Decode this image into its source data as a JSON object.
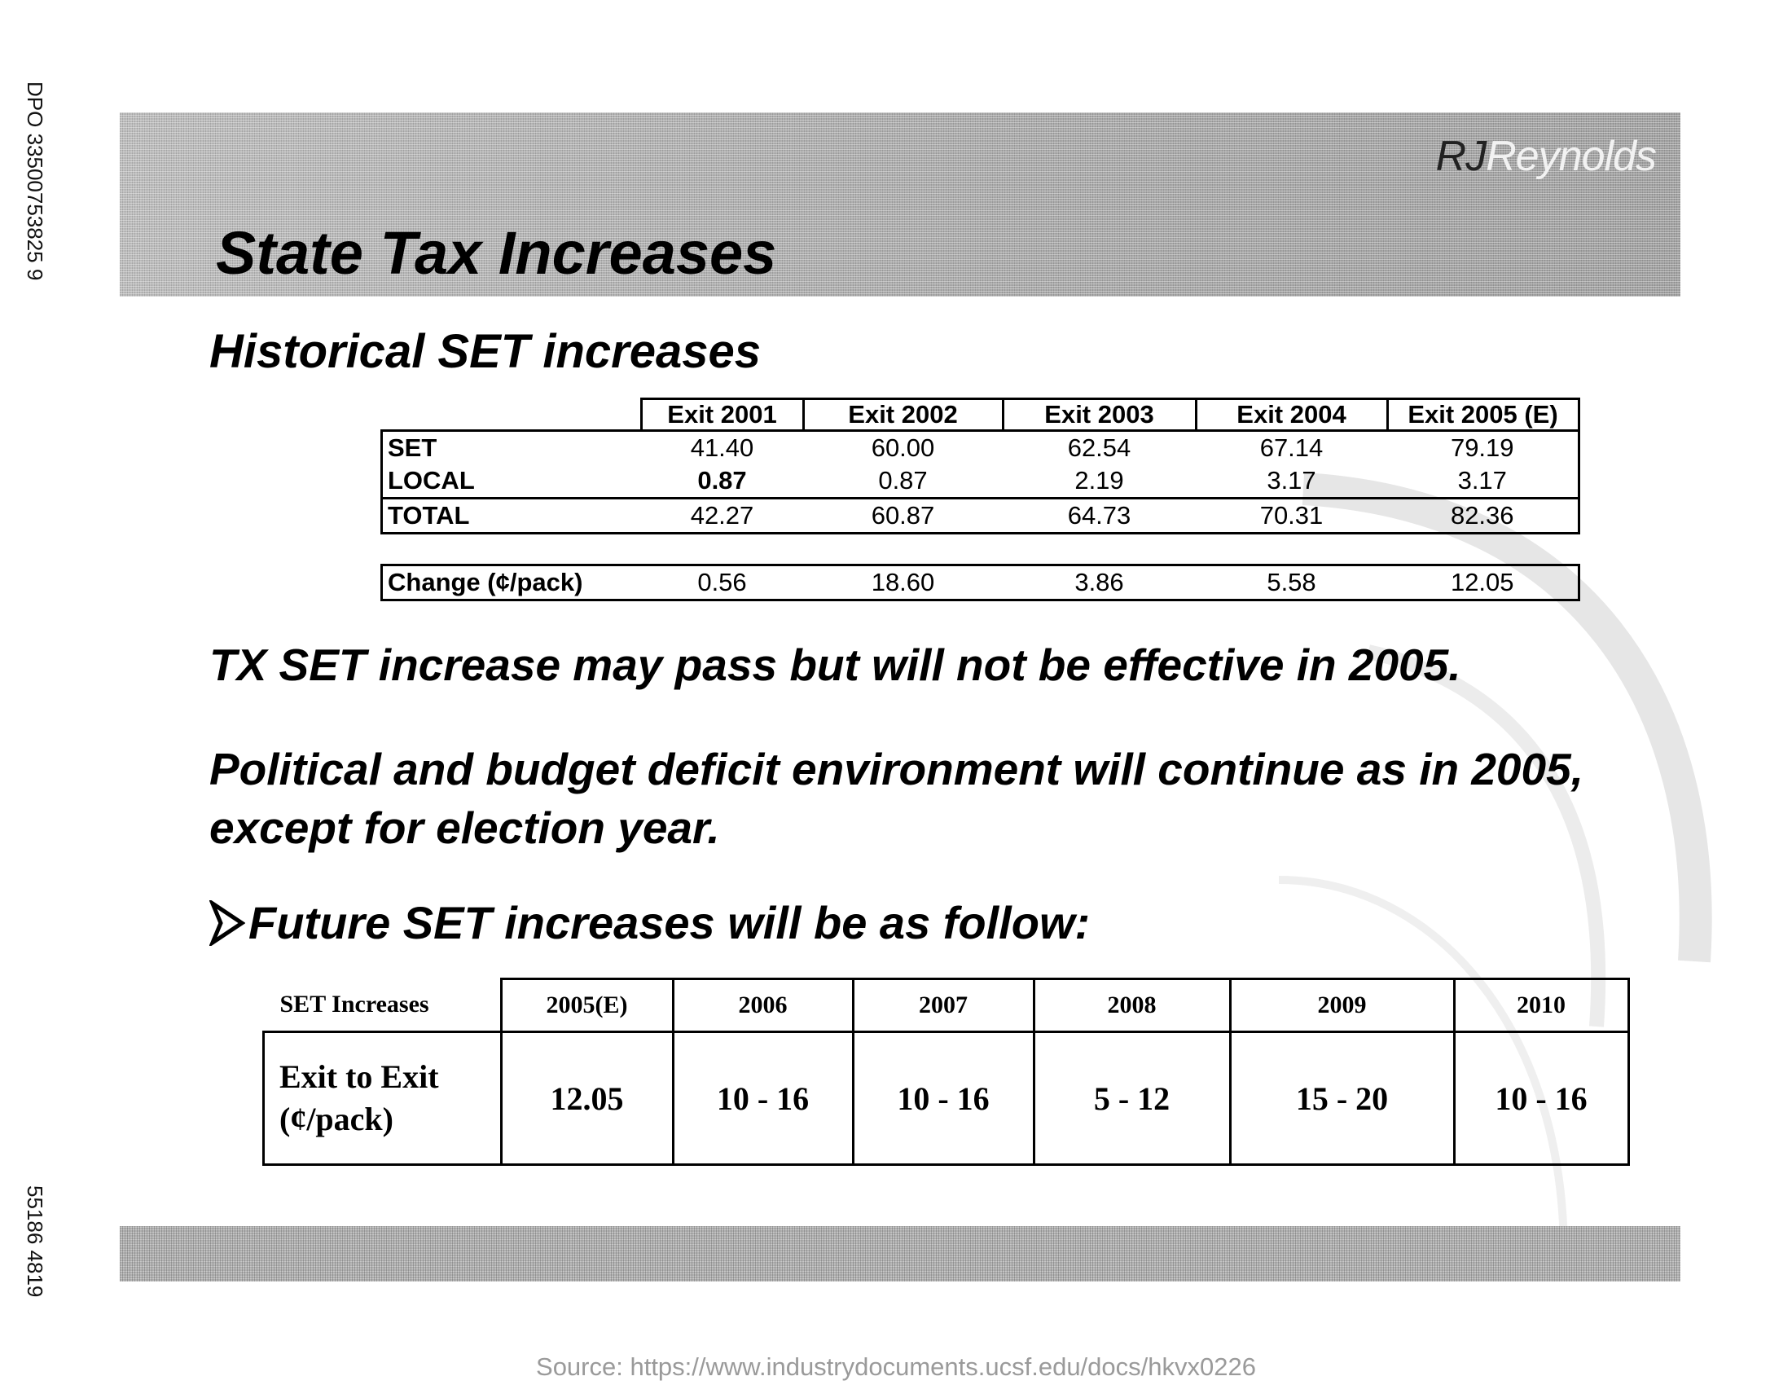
{
  "side_codes": {
    "top": "DPO 33500753825 9",
    "bottom": "55186 4819"
  },
  "header": {
    "logo_rj": "RJ",
    "logo_rest": "Reynolds",
    "title": "State Tax Increases"
  },
  "historical": {
    "heading": "Historical SET increases",
    "columns": [
      "Exit 2001",
      "Exit 2002",
      "Exit 2003",
      "Exit 2004",
      "Exit 2005 (E)"
    ],
    "rows": [
      {
        "label": "SET",
        "values": [
          "41.40",
          "60.00",
          "62.54",
          "67.14",
          "79.19"
        ]
      },
      {
        "label": "LOCAL",
        "values": [
          "0.87",
          "0.87",
          "2.19",
          "3.17",
          "3.17"
        ]
      },
      {
        "label": "TOTAL",
        "values": [
          "42.27",
          "60.87",
          "64.73",
          "70.31",
          "82.36"
        ]
      }
    ],
    "change": {
      "label": "Change (¢/pack)",
      "values": [
        "0.56",
        "18.60",
        "3.86",
        "5.58",
        "12.05"
      ]
    }
  },
  "statements": {
    "tx": "TX SET increase may pass but will not be effective in 2005.",
    "political": "Political and budget deficit environment will continue as in 2005, except for election year."
  },
  "future": {
    "heading": "Future SET increases will be as follow:",
    "corner_label": "SET Increases",
    "columns": [
      "2005(E)",
      "2006",
      "2007",
      "2008",
      "2009",
      "2010"
    ],
    "row_label_line1": "Exit to Exit",
    "row_label_line2": "(¢/pack)",
    "values": [
      "12.05",
      "10 - 16",
      "10 - 16",
      "5 - 12",
      "15 - 20",
      "10 - 16"
    ]
  },
  "source": "Source: https://www.industrydocuments.ucsf.edu/docs/hkvx0226"
}
